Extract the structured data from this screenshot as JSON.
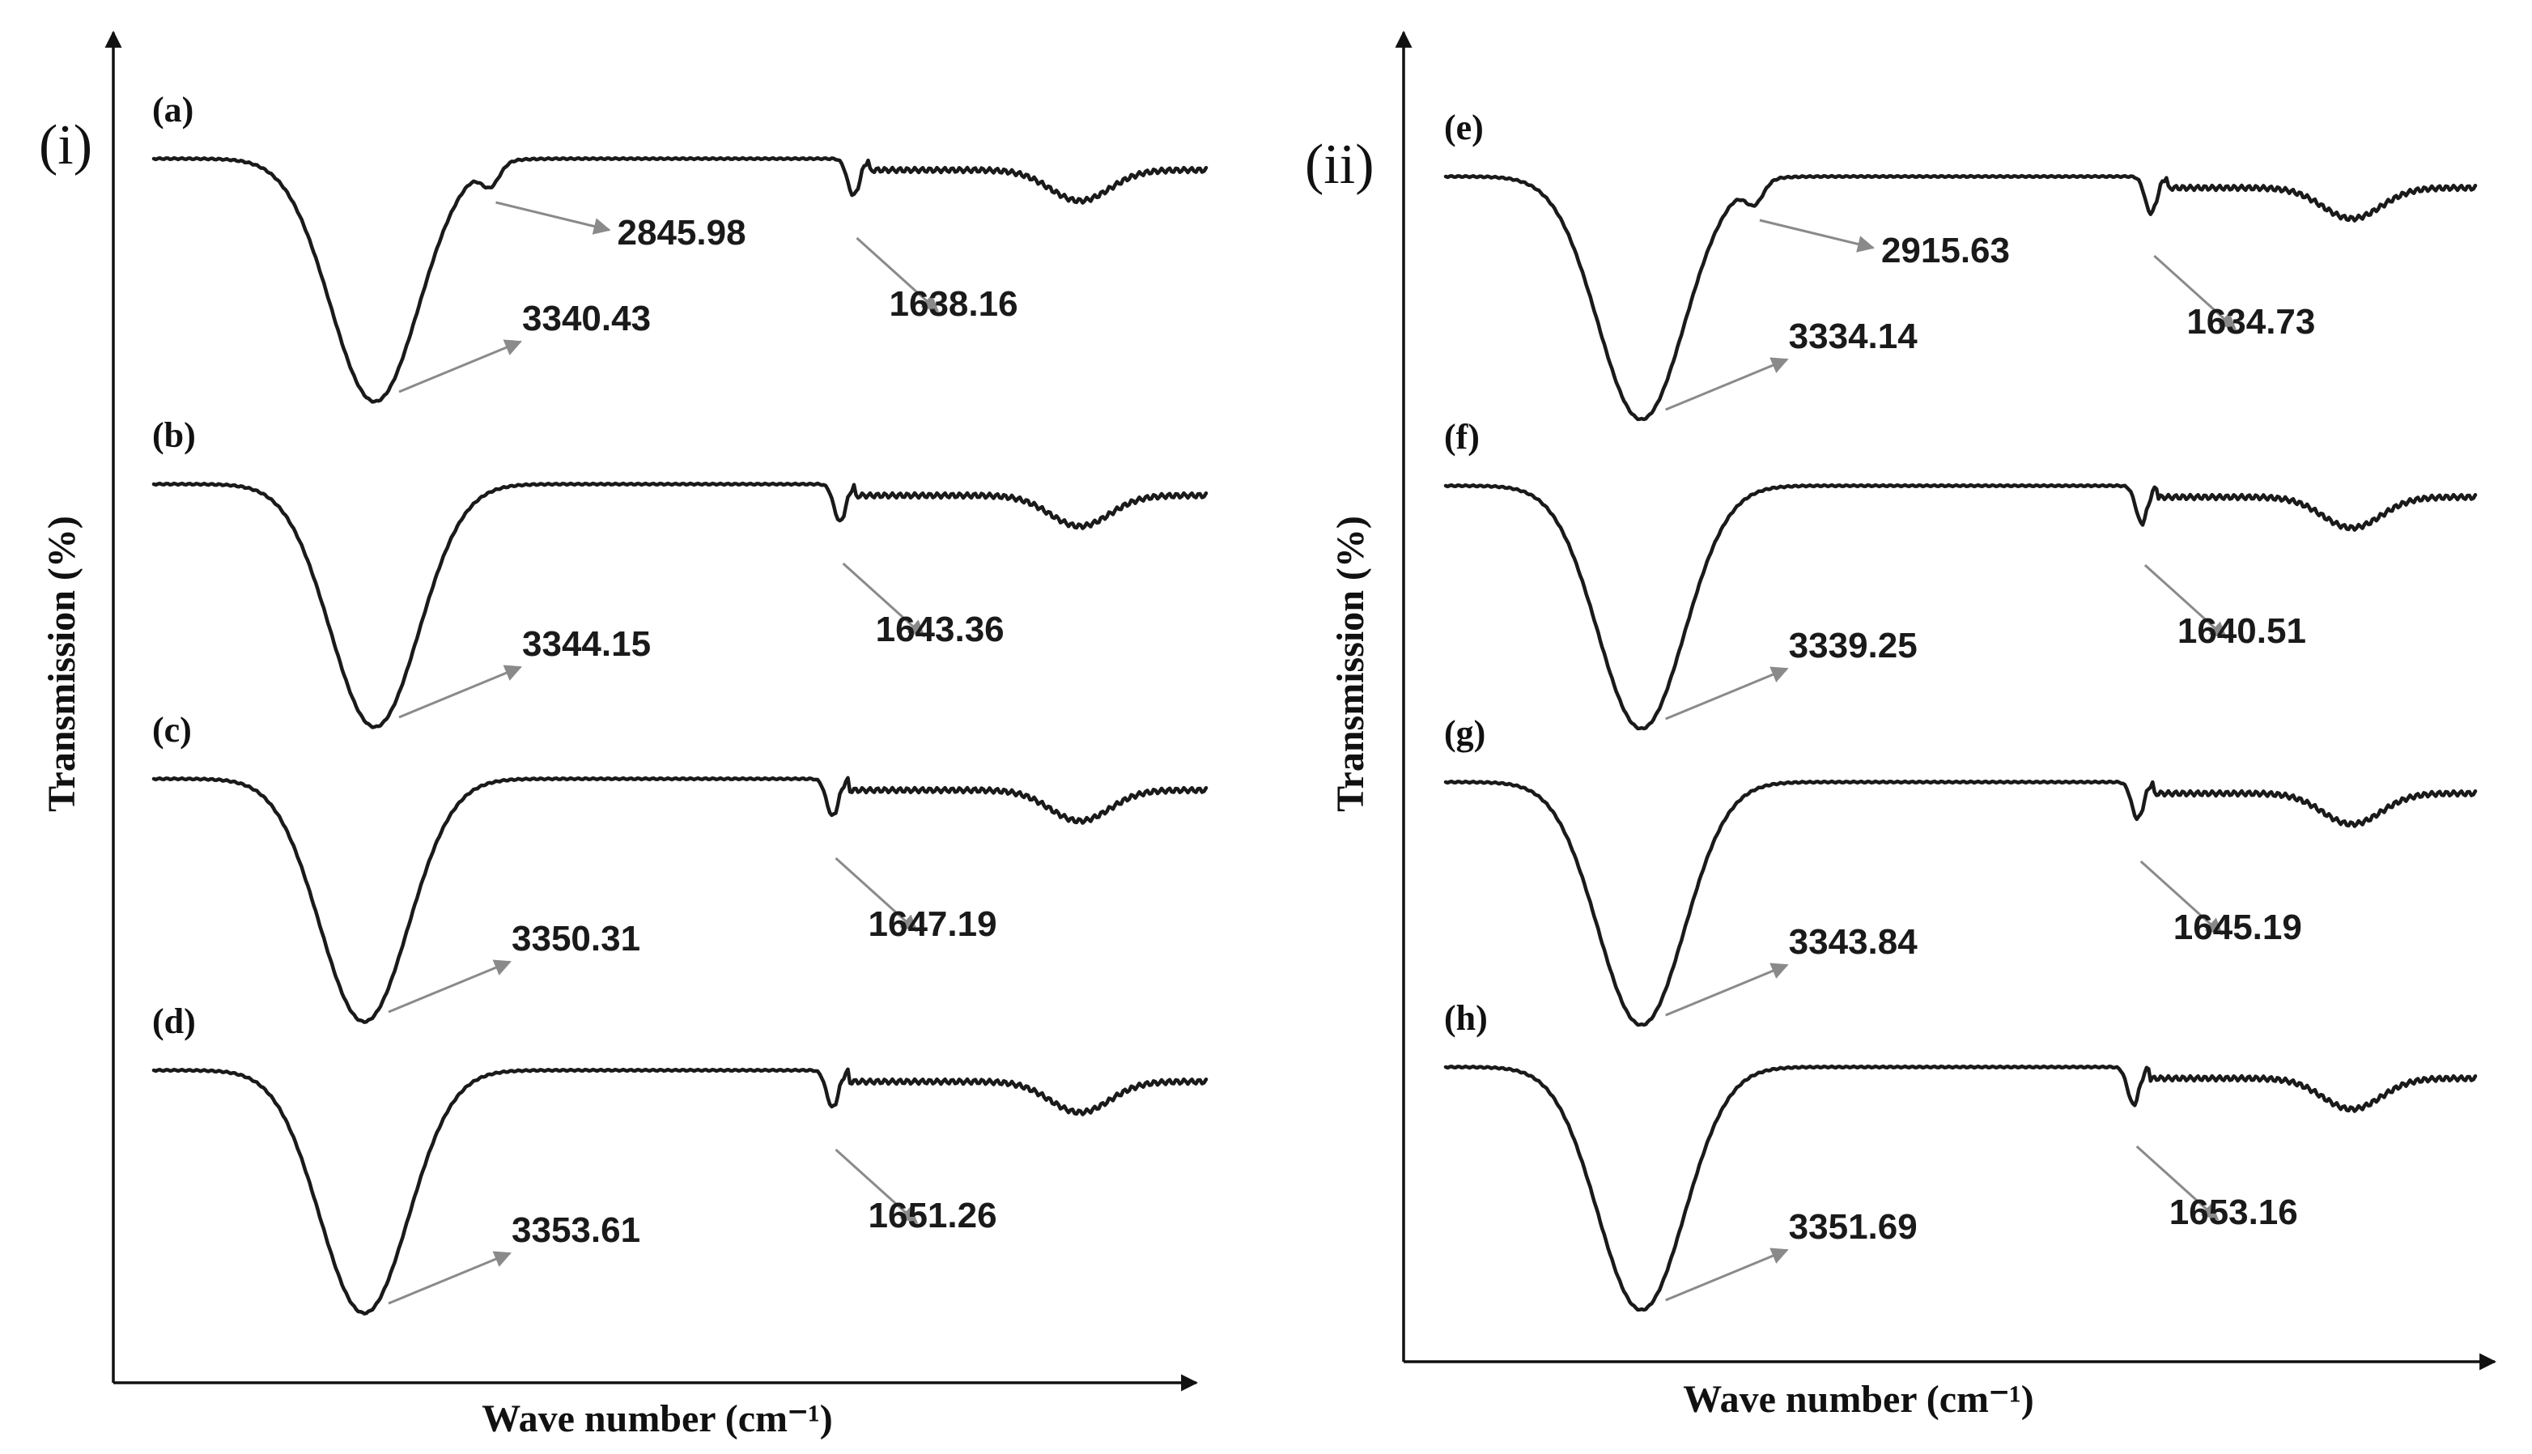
{
  "chart_data": [
    {
      "type": "line",
      "panel_label": "(i)",
      "xlabel": "Wave number (cm⁻¹)",
      "ylabel": "Transmission (%)",
      "series": [
        {
          "name": "(a)",
          "peaks": [
            {
              "label": "3340.43",
              "value": 3340.43
            },
            {
              "label": "2845.98",
              "value": 2845.98
            },
            {
              "label": "1638.16",
              "value": 1638.16
            }
          ]
        },
        {
          "name": "(b)",
          "peaks": [
            {
              "label": "3344.15",
              "value": 3344.15
            },
            {
              "label": "1643.36",
              "value": 1643.36
            }
          ]
        },
        {
          "name": "(c)",
          "peaks": [
            {
              "label": "3350.31",
              "value": 3350.31
            },
            {
              "label": "1647.19",
              "value": 1647.19
            }
          ]
        },
        {
          "name": "(d)",
          "peaks": [
            {
              "label": "3353.61",
              "value": 3353.61
            },
            {
              "label": "1651.26",
              "value": 1651.26
            }
          ]
        }
      ]
    },
    {
      "type": "line",
      "panel_label": "(ii)",
      "xlabel": "Wave number (cm⁻¹)",
      "ylabel": "Transmission (%)",
      "series": [
        {
          "name": "(e)",
          "peaks": [
            {
              "label": "3334.14",
              "value": 3334.14
            },
            {
              "label": "2915.63",
              "value": 2915.63
            },
            {
              "label": "1634.73",
              "value": 1634.73
            }
          ]
        },
        {
          "name": "(f)",
          "peaks": [
            {
              "label": "3339.25",
              "value": 3339.25
            },
            {
              "label": "1640.51",
              "value": 1640.51
            }
          ]
        },
        {
          "name": "(g)",
          "peaks": [
            {
              "label": "3343.84",
              "value": 3343.84
            },
            {
              "label": "1645.19",
              "value": 1645.19
            }
          ]
        },
        {
          "name": "(h)",
          "peaks": [
            {
              "label": "3351.69",
              "value": 3351.69
            },
            {
              "label": "1653.16",
              "value": 1653.16
            }
          ]
        }
      ]
    }
  ],
  "colors": {
    "trace": "#1a1a1a",
    "axis": "#111111",
    "pointer": "#8a8a8a"
  }
}
